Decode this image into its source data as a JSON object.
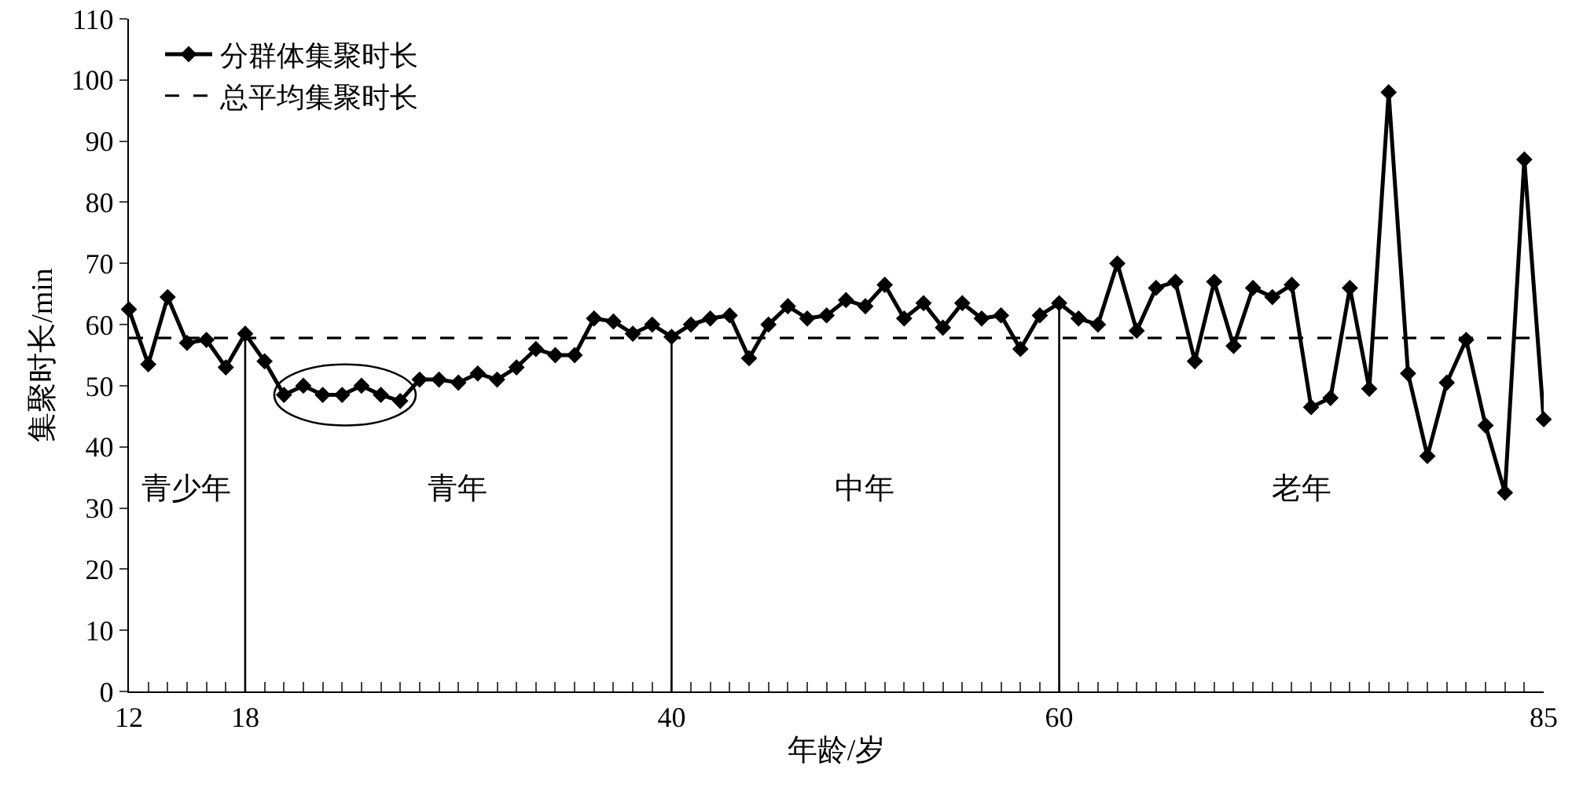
{
  "chart_data": {
    "type": "line",
    "xlabel": "年龄/岁",
    "ylabel": "集聚时长/min",
    "x": [
      12,
      13,
      14,
      15,
      16,
      17,
      18,
      19,
      20,
      21,
      22,
      23,
      24,
      25,
      26,
      27,
      28,
      29,
      30,
      31,
      32,
      33,
      34,
      35,
      36,
      37,
      38,
      39,
      40,
      41,
      42,
      43,
      44,
      45,
      46,
      47,
      48,
      49,
      50,
      51,
      52,
      53,
      54,
      55,
      56,
      57,
      58,
      59,
      60,
      61,
      62,
      63,
      64,
      65,
      66,
      67,
      68,
      69,
      70,
      71,
      72,
      73,
      74,
      75,
      76,
      77,
      78,
      79,
      80,
      81,
      82,
      83,
      84,
      85
    ],
    "series": [
      {
        "name": "分群体集聚时长",
        "color": "#000000",
        "marker": "diamond",
        "line_style": "solid",
        "values": [
          62.5,
          53.5,
          64.5,
          57,
          57.5,
          53,
          58.5,
          54,
          48.5,
          50,
          48.5,
          48.5,
          50,
          48.5,
          47.5,
          51,
          51,
          50.5,
          52,
          51,
          53,
          56,
          55,
          55,
          61,
          60.5,
          58.5,
          60,
          58,
          60,
          61,
          61.5,
          54.5,
          60,
          63,
          61,
          61.5,
          64,
          63,
          66.5,
          61,
          63.5,
          59.5,
          63.5,
          61,
          61.5,
          56,
          61.5,
          63.5,
          61,
          60,
          70,
          59,
          66,
          67,
          54,
          67,
          56.5,
          66,
          64.5,
          66.5,
          46.5,
          48,
          66,
          49.5,
          98,
          52,
          38.5,
          50.5,
          57.5,
          43.5,
          32.5,
          87,
          44.5
        ]
      }
    ],
    "ref_lines": [
      {
        "axis": "y",
        "value": 57.8,
        "label": "总平均集聚时长",
        "color": "#000000",
        "line_style": "dashed"
      },
      {
        "axis": "x",
        "value": 18,
        "color": "#000000",
        "line_style": "solid"
      },
      {
        "axis": "x",
        "value": 40,
        "color": "#000000",
        "line_style": "solid"
      },
      {
        "axis": "x",
        "value": 60,
        "color": "#000000",
        "line_style": "solid"
      }
    ],
    "annotations": [
      "青少年",
      "青年",
      "中年",
      "老年"
    ],
    "xlim": [
      12,
      85
    ],
    "xticks": [
      12,
      {
        "value": 13,
        "label": null
      },
      {
        "value": 14,
        "label": null
      },
      {
        "value": 15,
        "label": null
      },
      {
        "value": 16,
        "label": null
      },
      {
        "value": 17,
        "label": null
      },
      18,
      {
        "value": 19,
        "label": null
      },
      {
        "value": 20,
        "label": null
      },
      {
        "value": 21,
        "label": null
      },
      {
        "value": 22,
        "label": null
      },
      {
        "value": 23,
        "label": null
      },
      {
        "value": 24,
        "label": null
      },
      {
        "value": 25,
        "label": null
      },
      {
        "value": 26,
        "label": null
      },
      {
        "value": 27,
        "label": null
      },
      {
        "value": 28,
        "label": null
      },
      {
        "value": 29,
        "label": null
      },
      {
        "value": 30,
        "label": null
      },
      {
        "value": 31,
        "label": null
      },
      {
        "value": 32,
        "label": null
      },
      {
        "value": 33,
        "label": null
      },
      {
        "value": 34,
        "label": null
      },
      {
        "value": 35,
        "label": null
      },
      {
        "value": 36,
        "label": null
      },
      {
        "value": 37,
        "label": null
      },
      {
        "value": 38,
        "label": null
      },
      {
        "value": 39,
        "label": null
      },
      40,
      {
        "value": 41,
        "label": null
      },
      {
        "value": 42,
        "label": null
      },
      {
        "value": 43,
        "label": null
      },
      {
        "value": 44,
        "label": null
      },
      {
        "value": 45,
        "label": null
      },
      {
        "value": 46,
        "label": null
      },
      {
        "value": 47,
        "label": null
      },
      {
        "value": 48,
        "label": null
      },
      {
        "value": 49,
        "label": null
      },
      {
        "value": 50,
        "label": null
      },
      {
        "value": 51,
        "label": null
      },
      {
        "value": 52,
        "label": null
      },
      {
        "value": 53,
        "label": null
      },
      {
        "value": 54,
        "label": null
      },
      {
        "value": 55,
        "label": null
      },
      {
        "value": 56,
        "label": null
      },
      {
        "value": 57,
        "label": null
      },
      {
        "value": 58,
        "label": null
      },
      {
        "value": 59,
        "label": null
      },
      60,
      {
        "value": 61,
        "label": null
      },
      {
        "value": 62,
        "label": null
      },
      {
        "value": 63,
        "label": null
      },
      {
        "value": 64,
        "label": null
      },
      {
        "value": 65,
        "label": null
      },
      {
        "value": 66,
        "label": null
      },
      {
        "value": 67,
        "label": null
      },
      {
        "value": 68,
        "label": null
      },
      {
        "value": 69,
        "label": null
      },
      {
        "value": 70,
        "label": null
      },
      {
        "value": 71,
        "label": null
      },
      {
        "value": 72,
        "label": null
      },
      {
        "value": 73,
        "label": null
      },
      {
        "value": 74,
        "label": null
      },
      {
        "value": 75,
        "label": null
      },
      {
        "value": 76,
        "label": null
      },
      {
        "value": 77,
        "label": null
      },
      {
        "value": 78,
        "label": null
      },
      {
        "value": 79,
        "label": null
      },
      {
        "value": 80,
        "label": null
      },
      {
        "value": 81,
        "label": null
      },
      {
        "value": 82,
        "label": null
      },
      {
        "value": 83,
        "label": null
      },
      {
        "value": 84,
        "label": null
      },
      85
    ],
    "ylim": [
      0,
      110
    ],
    "yticks": [
      0,
      10,
      20,
      30,
      40,
      50,
      60,
      70,
      80,
      90,
      100,
      110
    ],
    "grid": false,
    "legend": "top left"
  }
}
